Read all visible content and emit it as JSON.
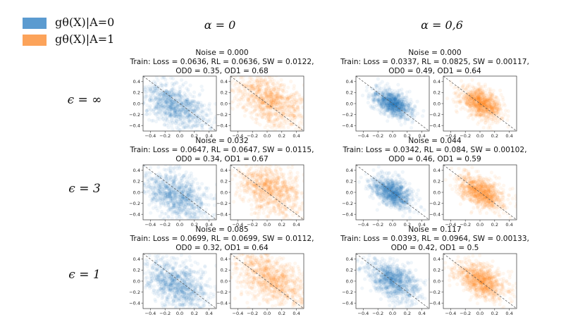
{
  "legend": {
    "items": [
      {
        "label": "gθ(X)|A=0",
        "color": "#5b9bd0"
      },
      {
        "label": "gθ(X)|A=1",
        "color": "#fca35a"
      }
    ]
  },
  "columns": [
    {
      "title": "α = 0"
    },
    {
      "title": "α = 0,6"
    }
  ],
  "rows": [
    {
      "label": "ϵ = ∞"
    },
    {
      "label": "ϵ = 3"
    },
    {
      "label": "ϵ = 1"
    }
  ],
  "colors": {
    "group0": "#1f77b4",
    "group1": "#ff7f0e"
  },
  "chart_data": {
    "type": "scatter",
    "xlim": [
      -0.5,
      0.5
    ],
    "ylim": [
      -0.5,
      0.5
    ],
    "xticks": [
      "−0.4",
      "−0.2",
      "0.0",
      "0.2",
      "0.4"
    ],
    "yticks": [
      "0.4",
      "0.2",
      "0.0",
      "−0.2",
      "−0.4"
    ],
    "diagonal_reference_line": true,
    "panels": [
      {
        "row": 0,
        "col": 0,
        "noise": "Noise = 0.000",
        "train": "Train: Loss = 0.0636, RL = 0.0636, SW = 0.0122,",
        "od": "OD0 = 0.35, OD1 = 0.68",
        "group0_cloud": {
          "center": [
            -0.05,
            -0.05
          ],
          "spread": [
            0.22,
            0.22
          ]
        },
        "group1_cloud": {
          "center": [
            0.05,
            0.05
          ],
          "spread": [
            0.24,
            0.24
          ]
        }
      },
      {
        "row": 0,
        "col": 1,
        "noise": "Noise = 0.000",
        "train": "Train: Loss = 0.0337, RL = 0.0825, SW = 0.00117,",
        "od": "OD0 = 0.49, OD1 = 0.64",
        "group0_cloud": {
          "center": [
            0.0,
            0.0
          ],
          "spread": [
            0.13,
            0.13
          ]
        },
        "group1_cloud": {
          "center": [
            0.02,
            0.0
          ],
          "spread": [
            0.14,
            0.14
          ]
        }
      },
      {
        "row": 1,
        "col": 0,
        "noise": "Noise = 0.032",
        "train": "Train: Loss = 0.0647, RL = 0.0647,  SW = 0.0115,",
        "od": "OD0 = 0.34, OD1 = 0.67",
        "group0_cloud": {
          "center": [
            -0.05,
            -0.05
          ],
          "spread": [
            0.22,
            0.22
          ]
        },
        "group1_cloud": {
          "center": [
            0.05,
            0.05
          ],
          "spread": [
            0.24,
            0.24
          ]
        }
      },
      {
        "row": 1,
        "col": 1,
        "noise": "Noise = 0.044",
        "train": "Train: Loss = 0.0342, RL = 0.084,  SW = 0.00102,",
        "od": "OD0 = 0.46, OD1 = 0.59",
        "group0_cloud": {
          "center": [
            0.0,
            0.0
          ],
          "spread": [
            0.14,
            0.14
          ]
        },
        "group1_cloud": {
          "center": [
            0.02,
            0.0
          ],
          "spread": [
            0.15,
            0.15
          ]
        }
      },
      {
        "row": 2,
        "col": 0,
        "noise": "Noise = 0.085",
        "train": "Train: Loss = 0.0699, RL = 0.0699,  SW = 0.0112,",
        "od": "OD0 = 0.32, OD1 = 0.64",
        "group0_cloud": {
          "center": [
            -0.05,
            -0.05
          ],
          "spread": [
            0.23,
            0.23
          ]
        },
        "group1_cloud": {
          "center": [
            0.05,
            0.05
          ],
          "spread": [
            0.24,
            0.24
          ]
        }
      },
      {
        "row": 2,
        "col": 1,
        "noise": "Noise = 0.117",
        "train": "Train: Loss = 0.0393, RL = 0.0964,  SW = 0.00133,",
        "od": "OD0 = 0.42, OD1 = 0.5",
        "group0_cloud": {
          "center": [
            0.0,
            0.0
          ],
          "spread": [
            0.18,
            0.18
          ]
        },
        "group1_cloud": {
          "center": [
            0.02,
            0.0
          ],
          "spread": [
            0.17,
            0.17
          ]
        }
      }
    ]
  }
}
